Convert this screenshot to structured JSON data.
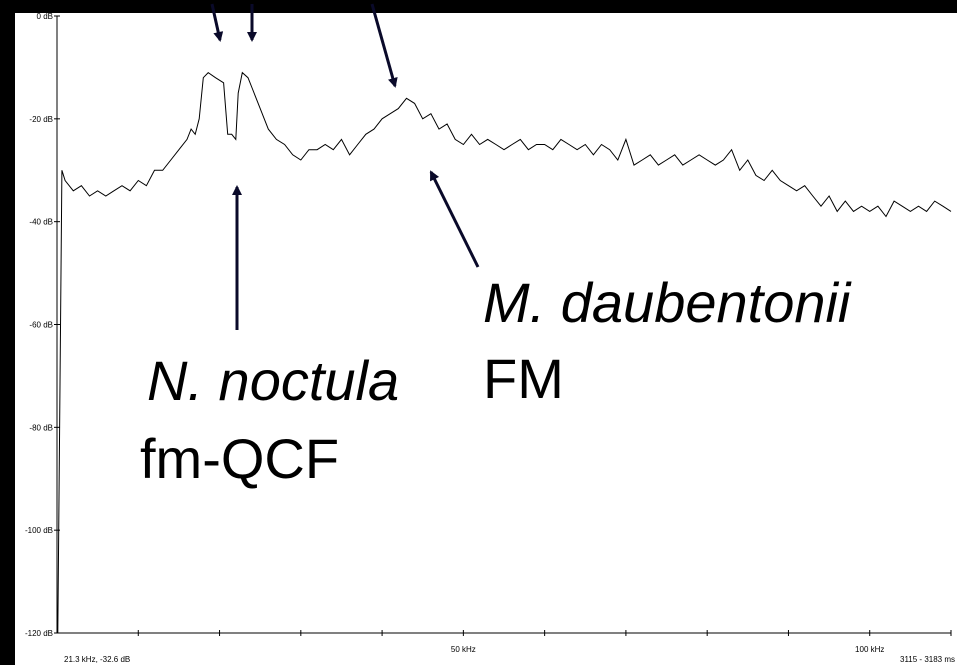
{
  "chart_data": {
    "type": "line",
    "x": [
      0.1,
      0.6,
      1,
      2,
      3,
      4,
      5,
      6,
      7,
      8,
      9,
      10,
      11,
      12,
      13,
      14,
      15,
      16,
      16.5,
      17,
      17.5,
      18,
      18.6,
      19.5,
      20.5,
      21,
      21.5,
      22,
      22.3,
      22.8,
      23.5,
      24,
      25,
      26,
      27,
      28,
      29,
      30,
      31,
      32,
      33,
      34,
      35,
      36,
      37,
      38,
      39,
      40,
      41,
      42,
      43,
      44,
      45,
      46,
      47,
      48,
      49,
      50,
      51,
      52,
      53,
      54,
      55,
      56,
      57,
      58,
      59,
      60,
      61,
      62,
      63,
      64,
      65,
      66,
      67,
      68,
      69,
      70,
      71,
      72,
      73,
      74,
      75,
      76,
      77,
      78,
      79,
      80,
      81,
      82,
      83,
      84,
      85,
      86,
      87,
      88,
      89,
      90,
      91,
      92,
      93,
      94,
      95,
      96,
      97,
      98,
      99,
      100,
      101,
      102,
      103,
      104,
      105,
      106,
      107,
      108,
      109,
      110
    ],
    "values": [
      -120,
      -30,
      -32,
      -34,
      -33,
      -35,
      -34,
      -35,
      -34,
      -33,
      -34,
      -32,
      -33,
      -30,
      -30,
      -28,
      -26,
      -24,
      -22,
      -23,
      -20,
      -12,
      -11,
      -12,
      -13,
      -23,
      -23,
      -24,
      -15,
      -11,
      -12,
      -14,
      -18,
      -22,
      -24,
      -25,
      -27,
      -28,
      -26,
      -26,
      -25,
      -26,
      -24,
      -27,
      -25,
      -23,
      -22,
      -20,
      -19,
      -18,
      -16,
      -17,
      -20,
      -19,
      -22,
      -21,
      -24,
      -25,
      -23,
      -25,
      -24,
      -25,
      -26,
      -25,
      -24,
      -26,
      -25,
      -25,
      -26,
      -24,
      -25,
      -26,
      -25,
      -27,
      -25,
      -26,
      -28,
      -24,
      -29,
      -28,
      -27,
      -29,
      -28,
      -27,
      -29,
      -28,
      -27,
      -28,
      -29,
      -28,
      -26,
      -30,
      -28,
      -31,
      -32,
      -30,
      -32,
      -33,
      -34,
      -33,
      -35,
      -37,
      -35,
      -38,
      -36,
      -38,
      -37,
      -38,
      -37,
      -39,
      -36,
      -37,
      -38,
      -37,
      -38,
      -36,
      -37,
      -38
    ],
    "color": "#000000",
    "xlim": [
      0,
      110
    ],
    "ylim": [
      -120,
      0
    ],
    "xticks": [
      {
        "value": 50,
        "label": "50 kHz"
      },
      {
        "value": 100,
        "label": "100 kHz"
      }
    ],
    "x_minor_ticks": [
      10,
      20,
      30,
      40,
      60,
      70,
      80,
      90,
      110
    ],
    "yticks": [
      {
        "value": 0,
        "label": "0 dB"
      },
      {
        "value": -20,
        "label": "-20 dB"
      },
      {
        "value": -40,
        "label": "-40 dB"
      },
      {
        "value": -60,
        "label": "-60 dB"
      },
      {
        "value": -80,
        "label": "-80 dB"
      },
      {
        "value": -100,
        "label": "-100 dB"
      },
      {
        "value": -120,
        "label": "-120 dB"
      }
    ],
    "annotations": [
      {
        "text": "N. noctula",
        "italic": true
      },
      {
        "text": "fm-QCF",
        "italic": false
      },
      {
        "text": "M. daubentonii",
        "italic": true
      },
      {
        "text": "FM",
        "italic": false
      }
    ],
    "cursor_readout": "21.3 kHz, -32.6 dB",
    "time_range": "3115 - 3183 ms"
  }
}
